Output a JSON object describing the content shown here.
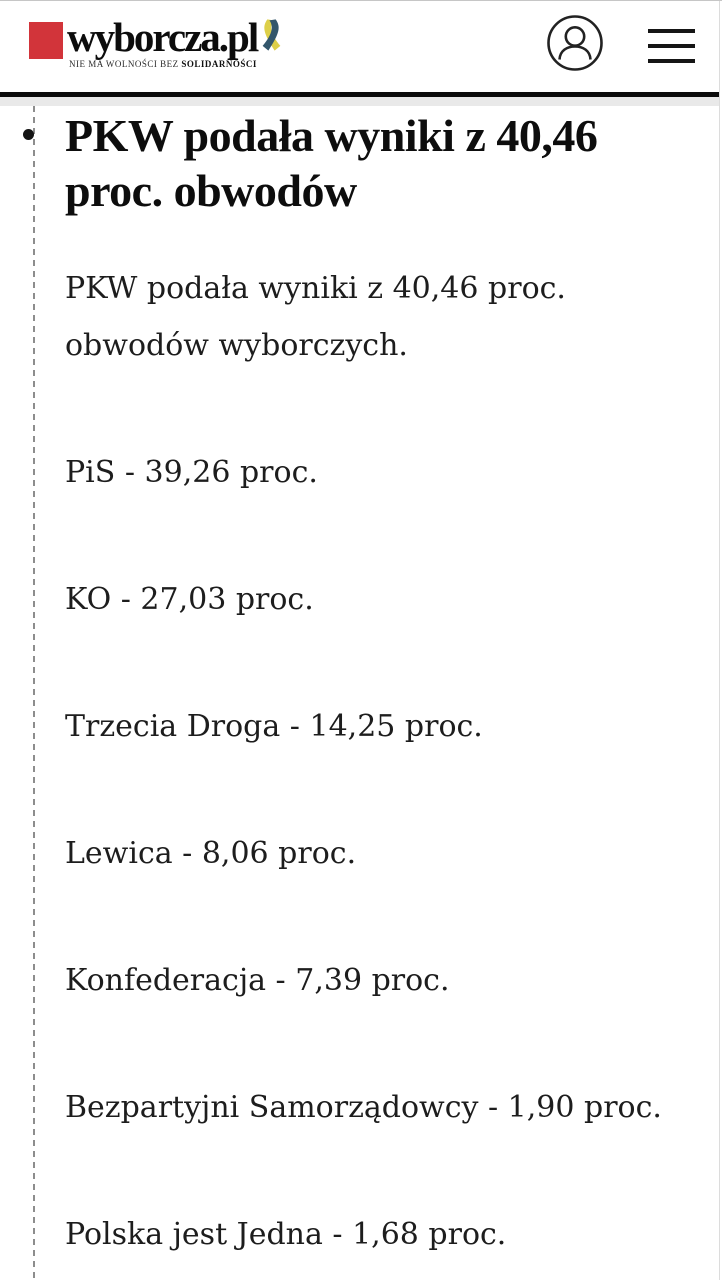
{
  "colors": {
    "brand_red": "#d2343a",
    "ribbon_yellow": "#ddcf49",
    "ribbon_blue": "#33566b",
    "icon_stroke": "#222222"
  },
  "header": {
    "brand_name": "wyborcza.pl",
    "tagline_prefix": "NIE MA WOLNOŚCI BEZ ",
    "tagline_emphasis": "SOLIDARNOŚCI"
  },
  "entry": {
    "title": "PKW podała wyniki z 40,46 proc. obwodów",
    "paragraphs": [
      "PKW podała wyniki z 40,46 proc. obwodów wyborczych.",
      "PiS - 39,26 proc.",
      "KO - 27,03 proc.",
      "Trzecia Droga - 14,25 proc.",
      "Lewica - 8,06 proc.",
      "Konfederacja - 7,39 proc.",
      "Bezpartyjni Samorządowcy - 1,90 proc.",
      "Polska jest Jedna - 1,68 proc."
    ]
  }
}
